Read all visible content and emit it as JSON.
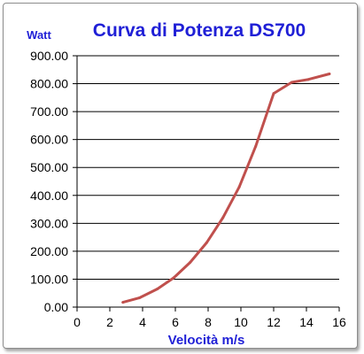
{
  "chart_data": {
    "type": "line",
    "title": "Curva di Potenza DS700",
    "ylabel": "Watt",
    "xlabel": "Velocità m/s",
    "xlim": [
      0,
      16
    ],
    "ylim": [
      0,
      900
    ],
    "x_ticks": [
      "0",
      "2",
      "4",
      "6",
      "8",
      "10",
      "12",
      "14",
      "16"
    ],
    "y_ticks": [
      "0.00",
      "100.00",
      "200.00",
      "300.00",
      "400.00",
      "500.00",
      "600.00",
      "700.00",
      "800.00",
      "900.00"
    ],
    "grid": "horizontal",
    "series": [
      {
        "color": "#c0504d",
        "x": [
          2.8,
          3.8,
          4.9,
          5.9,
          6.9,
          7.9,
          8.9,
          9.9,
          10.9,
          12.0,
          13.1,
          14.1,
          15.4
        ],
        "y": [
          17,
          33,
          65,
          105,
          160,
          230,
          320,
          430,
          575,
          765,
          805,
          815,
          835
        ]
      }
    ]
  }
}
